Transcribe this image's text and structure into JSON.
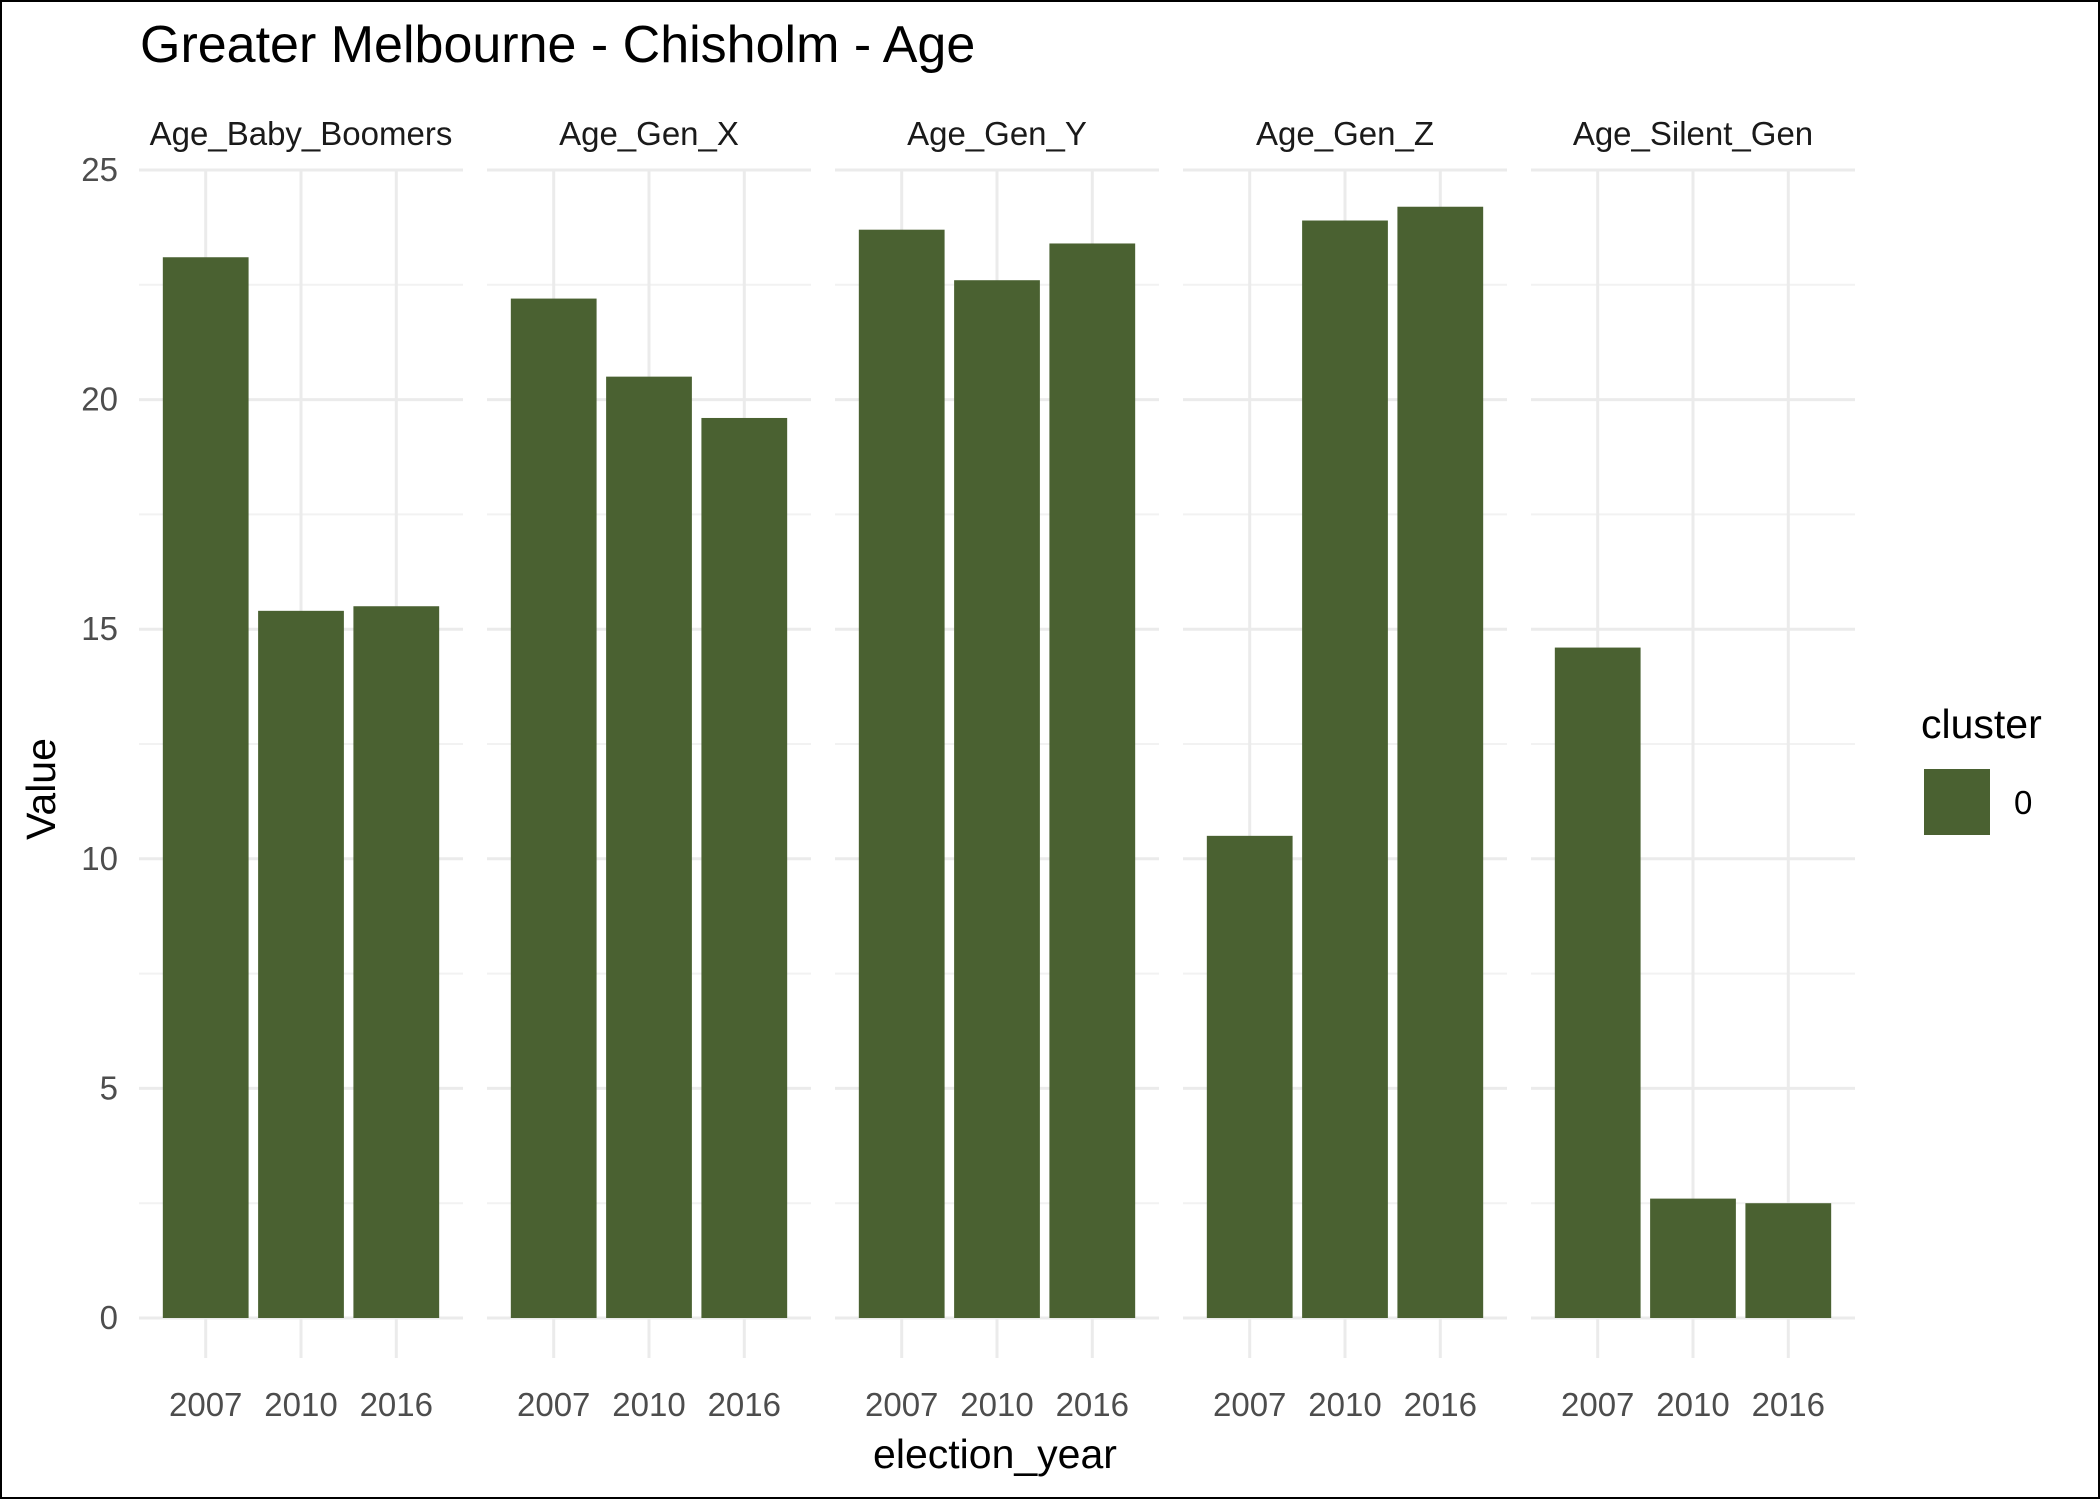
{
  "chart_data": {
    "type": "bar",
    "title": "Greater Melbourne - Chisholm - Age",
    "xlabel": "election_year",
    "ylabel": "Value",
    "ylim": [
      0,
      25
    ],
    "yticks": [
      "0",
      "5",
      "10",
      "15",
      "20",
      "25"
    ],
    "categories": [
      "2007",
      "2010",
      "2016"
    ],
    "grid": true,
    "legend": {
      "title": "cluster",
      "placement": "right",
      "entries": [
        {
          "label": "0",
          "color": "#4a6131"
        }
      ]
    },
    "bar_color": "#4a6131",
    "facets": [
      {
        "name": "Age_Baby_Boomers",
        "values": [
          23.1,
          15.4,
          15.5
        ]
      },
      {
        "name": "Age_Gen_X",
        "values": [
          22.2,
          20.5,
          19.6
        ]
      },
      {
        "name": "Age_Gen_Y",
        "values": [
          23.7,
          22.6,
          23.4
        ]
      },
      {
        "name": "Age_Gen_Z",
        "values": [
          10.5,
          23.9,
          24.2
        ]
      },
      {
        "name": "Age_Silent_Gen",
        "values": [
          14.6,
          2.6,
          2.5
        ]
      }
    ]
  }
}
